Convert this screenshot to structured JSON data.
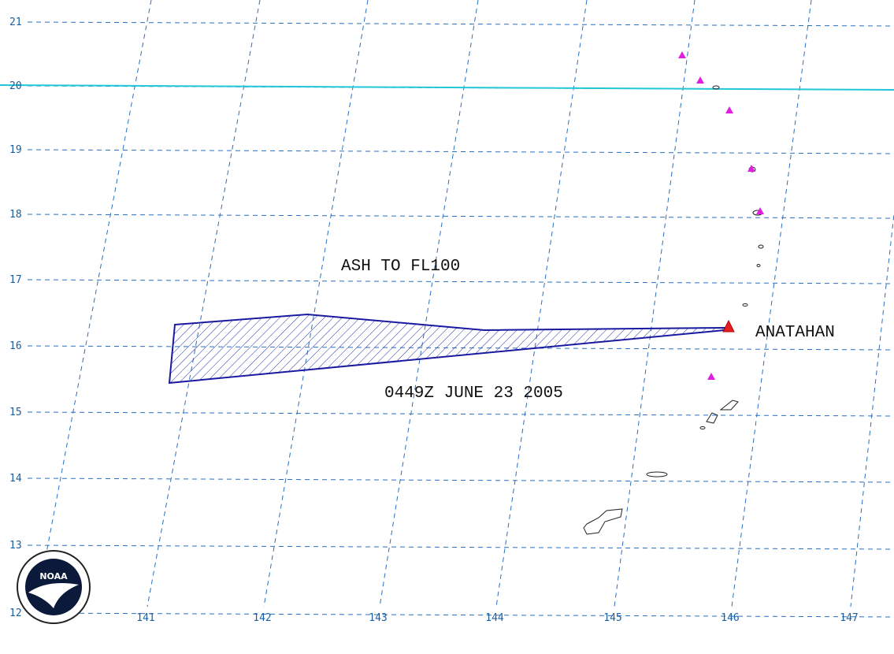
{
  "map": {
    "latitudes": [
      "21",
      "20",
      "19",
      "18",
      "17",
      "16",
      "15",
      "14",
      "13",
      "12"
    ],
    "longitudes": [
      "141",
      "142",
      "143",
      "144",
      "145",
      "146",
      "147"
    ],
    "annotations": {
      "plume_label": "ASH TO FL100",
      "time_label": "0449Z JUNE 23 2005",
      "volcano_label": "ANATAHAN"
    },
    "logo": "NOAA"
  }
}
